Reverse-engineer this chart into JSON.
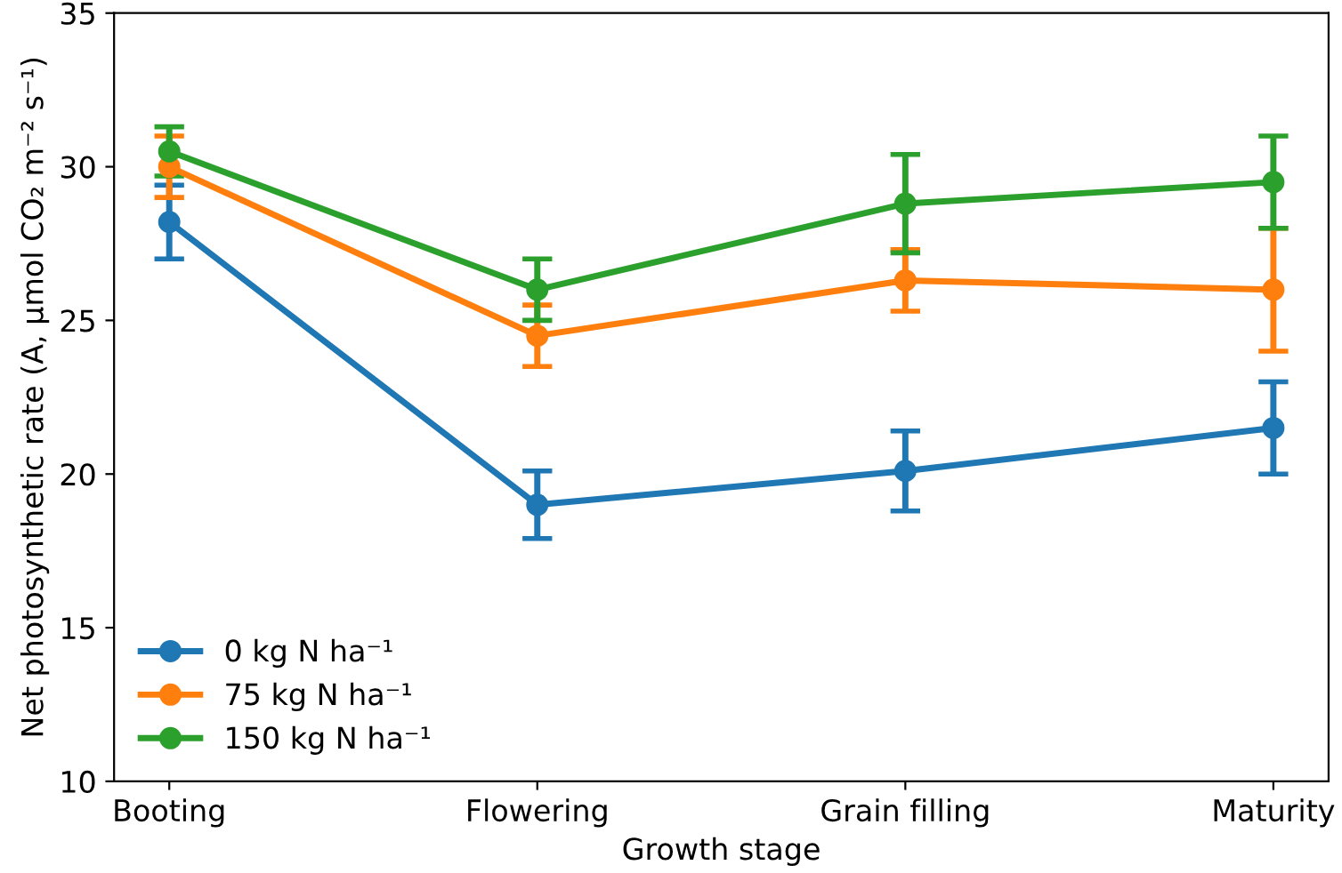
{
  "chart_data": {
    "type": "line",
    "xlabel": "Growth stage",
    "ylabel": "Net photosynthetic rate (A, µmol CO₂ m⁻² s⁻¹)",
    "categories": [
      "Booting",
      "Flowering",
      "Grain filling",
      "Maturity"
    ],
    "series": [
      {
        "name": "0 kg N ha⁻¹",
        "color": "#1f77b4",
        "values": [
          28.2,
          19.0,
          20.1,
          21.5
        ],
        "errors": [
          1.2,
          1.1,
          1.3,
          1.5
        ]
      },
      {
        "name": "75 kg N ha⁻¹",
        "color": "#ff7f0e",
        "values": [
          30.0,
          24.5,
          26.3,
          26.0
        ],
        "errors": [
          1.0,
          1.0,
          1.0,
          2.0
        ]
      },
      {
        "name": "150 kg N ha⁻¹",
        "color": "#2ca02c",
        "values": [
          30.5,
          26.0,
          28.8,
          29.5
        ],
        "errors": [
          0.8,
          1.0,
          1.6,
          1.5
        ]
      }
    ],
    "ylim": [
      10,
      35
    ],
    "yticks": [
      10,
      15,
      20,
      25,
      30,
      35
    ],
    "marker": "circle",
    "line_style": "solid",
    "legend": "bottom left",
    "grid": false
  }
}
